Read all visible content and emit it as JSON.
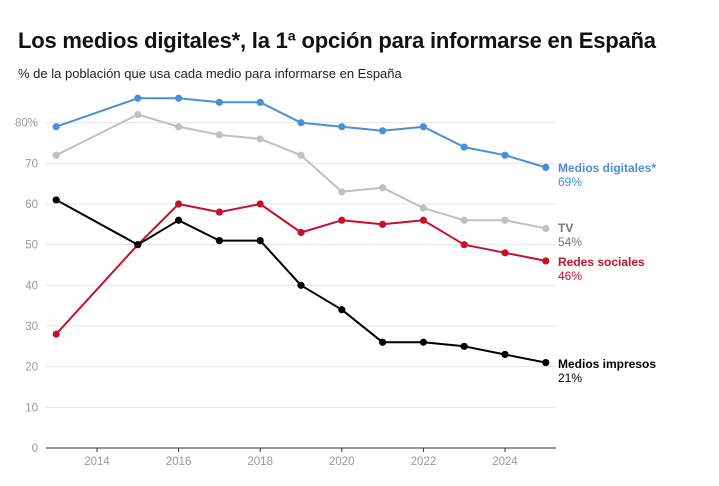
{
  "title": "Los medios digitales*, la 1ª opción para informarse en España",
  "subtitle": "% de la población que usa cada medio para informarse en España",
  "chart_data": {
    "type": "line",
    "x": [
      2013,
      2015,
      2016,
      2017,
      2018,
      2019,
      2020,
      2021,
      2022,
      2023,
      2024,
      2025
    ],
    "xticks": [
      2014,
      2016,
      2018,
      2020,
      2022,
      2024
    ],
    "yticks": [
      0,
      10,
      20,
      30,
      40,
      50,
      60,
      70,
      80
    ],
    "ytick_labels": [
      "0",
      "10",
      "20",
      "30",
      "40",
      "50",
      "60",
      "70",
      "80%"
    ],
    "ylim": [
      0,
      90
    ],
    "grid": true,
    "series": [
      {
        "name": "Medios digitales*",
        "value_label": "69%",
        "color": "#4a90d9",
        "values": [
          79,
          86,
          86,
          85,
          85,
          80,
          79,
          78,
          79,
          74,
          72,
          69
        ]
      },
      {
        "name": "TV",
        "value_label": "54%",
        "color": "#c0c0c0",
        "label_color": "#777777",
        "values": [
          72,
          82,
          79,
          77,
          76,
          72,
          63,
          64,
          59,
          56,
          56,
          54
        ]
      },
      {
        "name": "Redes sociales",
        "value_label": "46%",
        "color": "#c8102e",
        "values": [
          28,
          50,
          60,
          58,
          60,
          53,
          56,
          55,
          56,
          50,
          48,
          46
        ]
      },
      {
        "name": "Medios impresos",
        "value_label": "21%",
        "color": "#000000",
        "values": [
          61,
          50,
          56,
          51,
          51,
          40,
          34,
          26,
          26,
          25,
          23,
          21
        ]
      }
    ]
  }
}
